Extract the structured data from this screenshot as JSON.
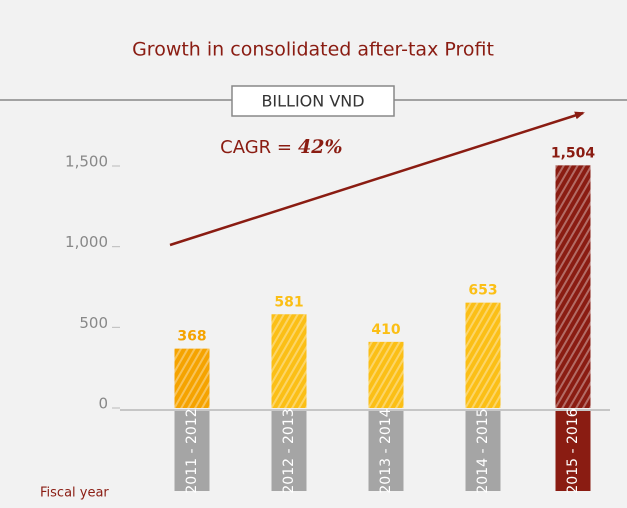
{
  "chart_data": {
    "type": "bar",
    "title": "Growth in consolidated after-tax Profit",
    "unit_label": "BILLION VND",
    "annotation": [
      "CAGR =",
      "42%"
    ],
    "x_label": "Fiscal year",
    "categories": [
      "2011 - 2012",
      "2012 - 2013",
      "2013 - 2014",
      "2014 - 2015",
      "2015 - 2016"
    ],
    "values": [
      368,
      581,
      410,
      653,
      1504
    ],
    "value_labels": [
      "368",
      "581",
      "410",
      "653",
      "1,504"
    ],
    "colors": [
      "#f5a300",
      "#fbbf16",
      "#fbbf16",
      "#fbbf16",
      "#8a1c12"
    ],
    "ylim": [
      0,
      1500
    ],
    "yticks": [
      0,
      500,
      {
        "value": 1000,
        "label": "1,000"
      },
      {
        "value": 1500,
        "label": "1,500"
      }
    ]
  }
}
